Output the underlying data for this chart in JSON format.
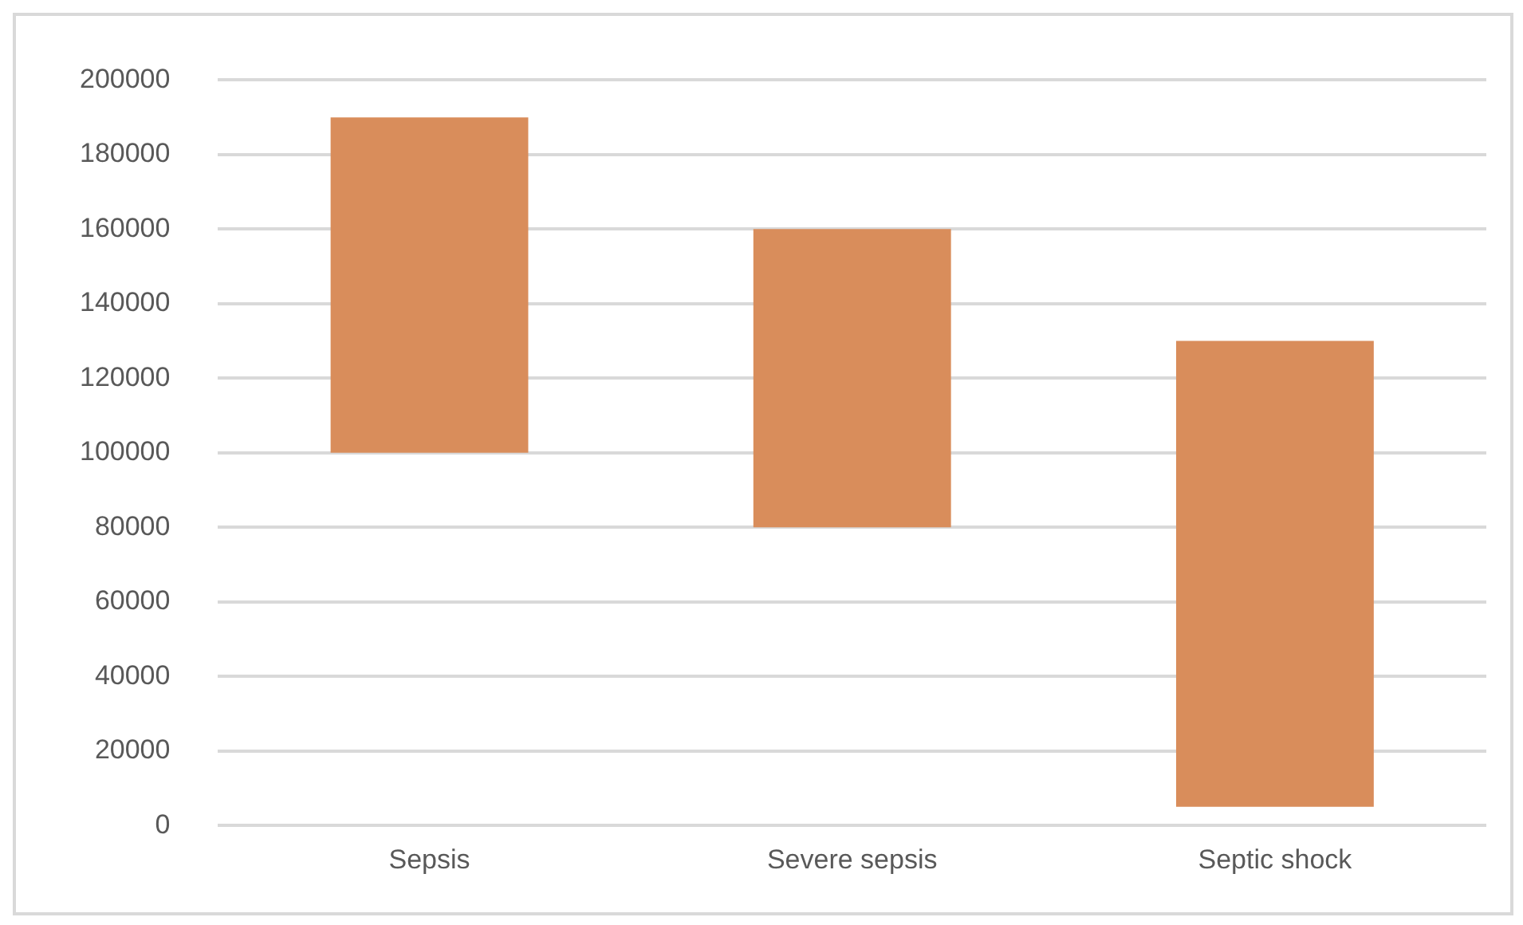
{
  "chart_data": {
    "type": "bar",
    "categories": [
      "Sepsis",
      "Severe sepsis",
      "Septic shock"
    ],
    "base": [
      100000,
      80000,
      5000
    ],
    "values": [
      90000,
      80000,
      125000
    ],
    "color": "#d98d5b",
    "ylim": [
      0,
      200000
    ],
    "yticks": [
      0,
      20000,
      40000,
      60000,
      80000,
      100000,
      120000,
      140000,
      160000,
      180000,
      200000
    ],
    "grid": "y",
    "legend": false
  }
}
